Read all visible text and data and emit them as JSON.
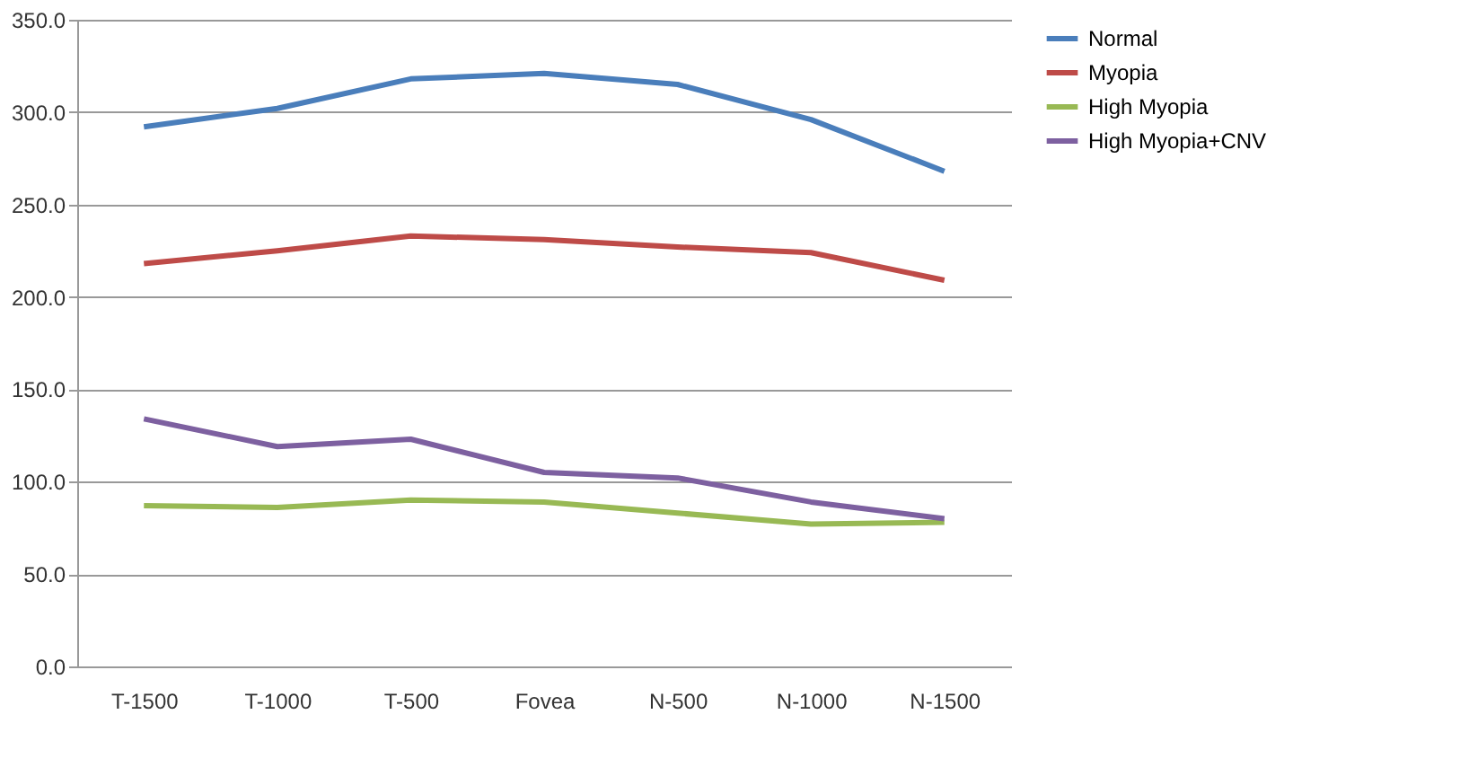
{
  "chart_data": {
    "type": "line",
    "categories": [
      "T-1500",
      "T-1000",
      "T-500",
      "Fovea",
      "N-500",
      "N-1000",
      "N-1500"
    ],
    "series": [
      {
        "name": "Normal",
        "color": "#4a7ebb",
        "values": [
          292,
          302,
          318,
          321,
          315,
          296,
          268
        ]
      },
      {
        "name": "Myopia",
        "color": "#be4b48",
        "values": [
          218,
          225,
          233,
          231,
          227,
          224,
          209
        ]
      },
      {
        "name": "High Myopia",
        "color": "#98b954",
        "values": [
          87,
          86,
          90,
          89,
          83,
          77,
          78
        ]
      },
      {
        "name": "High Myopia+CNV",
        "color": "#7d60a0",
        "values": [
          134,
          119,
          123,
          105,
          102,
          89,
          80
        ]
      }
    ],
    "ylim": [
      0,
      350
    ],
    "yticks": [
      {
        "value": 0,
        "label": "0.0"
      },
      {
        "value": 50,
        "label": "50.0"
      },
      {
        "value": 100,
        "label": "100.0"
      },
      {
        "value": 150,
        "label": "150.0"
      },
      {
        "value": 200,
        "label": "200.0"
      },
      {
        "value": 250,
        "label": "250.0"
      },
      {
        "value": 300,
        "label": "300.0"
      },
      {
        "value": 350,
        "label": "350.0"
      }
    ],
    "grid": "y",
    "legend": "right",
    "marker": "none",
    "line_style": "solid"
  }
}
